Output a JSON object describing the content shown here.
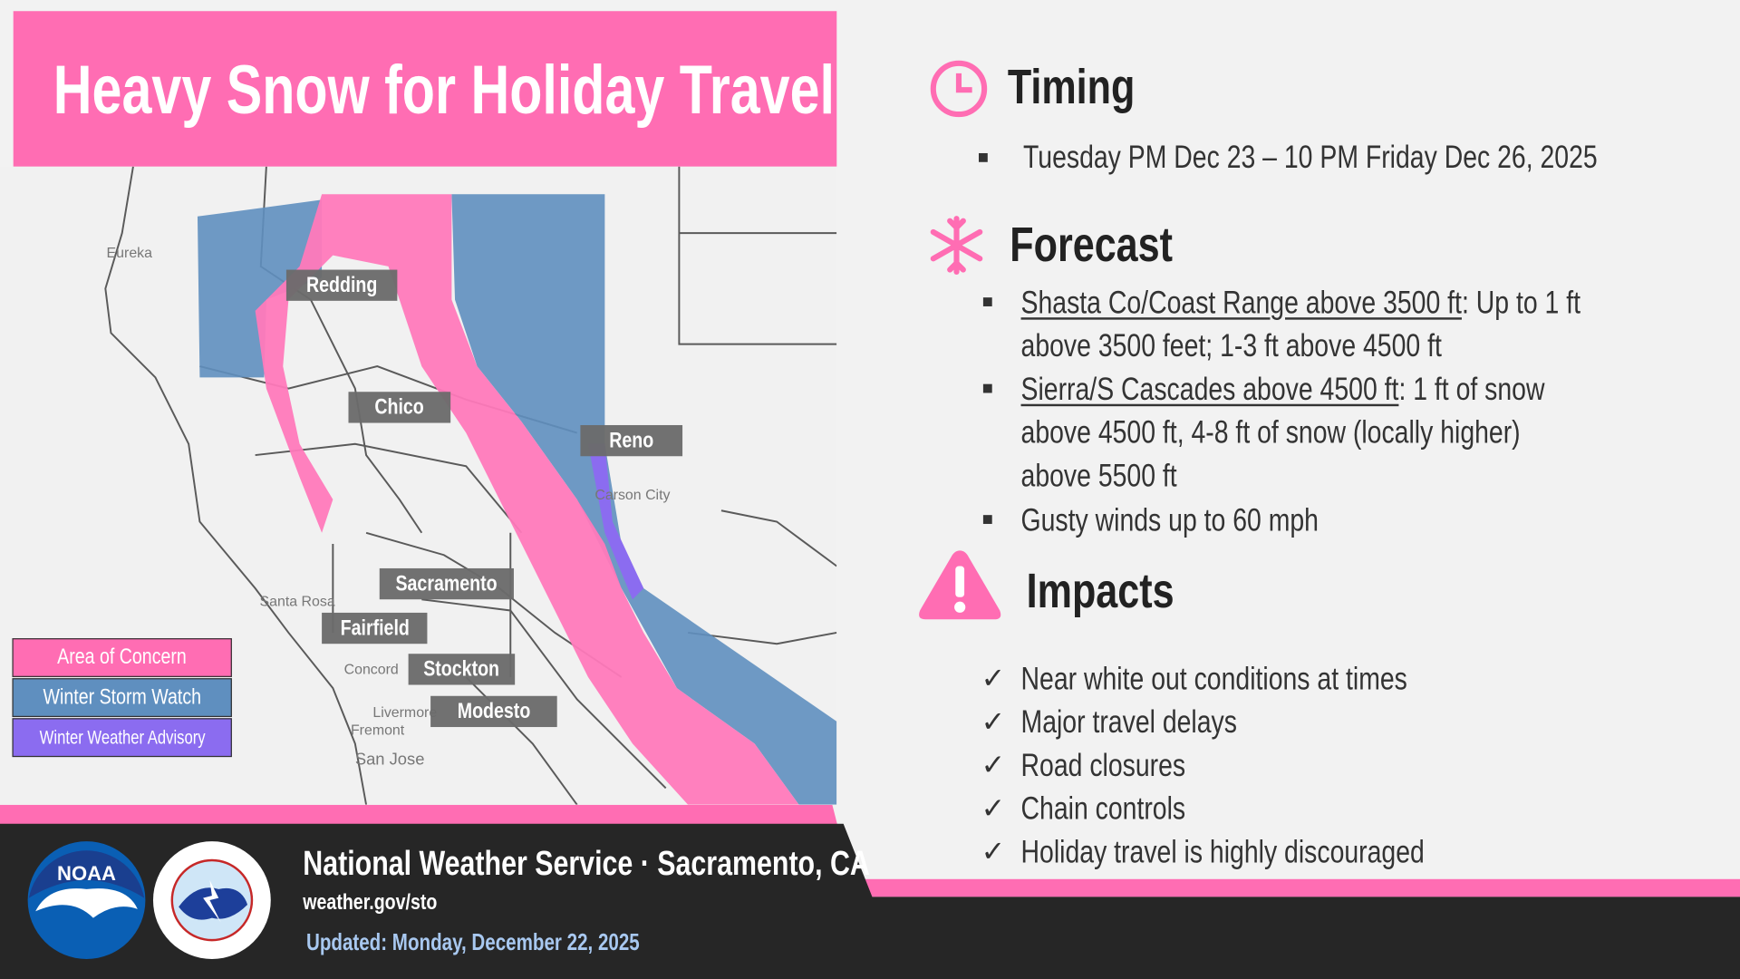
{
  "title": "Heavy Snow for Holiday Travel",
  "colors": {
    "accent": "#ff6db3",
    "watch": "#6c97c2",
    "advisory": "#8b6cf0",
    "footer": "#262626"
  },
  "map": {
    "cities": [
      "Redding",
      "Chico",
      "Reno",
      "Sacramento",
      "Fairfield",
      "Stockton",
      "Modesto"
    ],
    "small_labels": [
      "Eureka",
      "Carson City",
      "Santa Rosa",
      "Concord",
      "Livermore",
      "Fremont",
      "San Jose"
    ]
  },
  "legend": [
    {
      "label": "Area of Concern",
      "color": "#ff6db3"
    },
    {
      "label": "Winter Storm Watch",
      "color": "#5f8fbf"
    },
    {
      "label": "Winter Weather Advisory",
      "color": "#8b6cf0"
    }
  ],
  "timing": {
    "heading": "Timing",
    "icon": "clock-icon",
    "items": [
      "Tuesday PM Dec 23 – 10 PM Friday Dec 26, 2025"
    ]
  },
  "forecast": {
    "heading": "Forecast",
    "icon": "snowflake-icon",
    "items": [
      {
        "label": "Shasta Co/Coast Range above 3500 ft",
        "line1": ": Up to 1 ft",
        "line2": "above 3500 feet; 1-3 ft above 4500 ft"
      },
      {
        "label": "Sierra/S Cascades above 4500 ft",
        "line1": ": 1 ft of snow",
        "line2": "above 4500 ft, 4-8 ft of snow (locally higher)",
        "line3": "above 5500 ft"
      },
      {
        "text": "Gusty winds up to 60 mph"
      }
    ]
  },
  "impacts": {
    "heading": "Impacts",
    "icon": "warning-icon",
    "items": [
      "Near white out conditions at times",
      "Major travel delays",
      "Road closures",
      "Chain controls",
      "Holiday travel is highly discouraged"
    ]
  },
  "footer": {
    "org": "National Weather Service · Sacramento, CA",
    "url": "weather.gov/sto",
    "updated": "Updated: Monday, December 22, 2025",
    "noaa_logo": "NOAA",
    "nws_logo": "NATIONAL WEATHER SERVICE"
  }
}
